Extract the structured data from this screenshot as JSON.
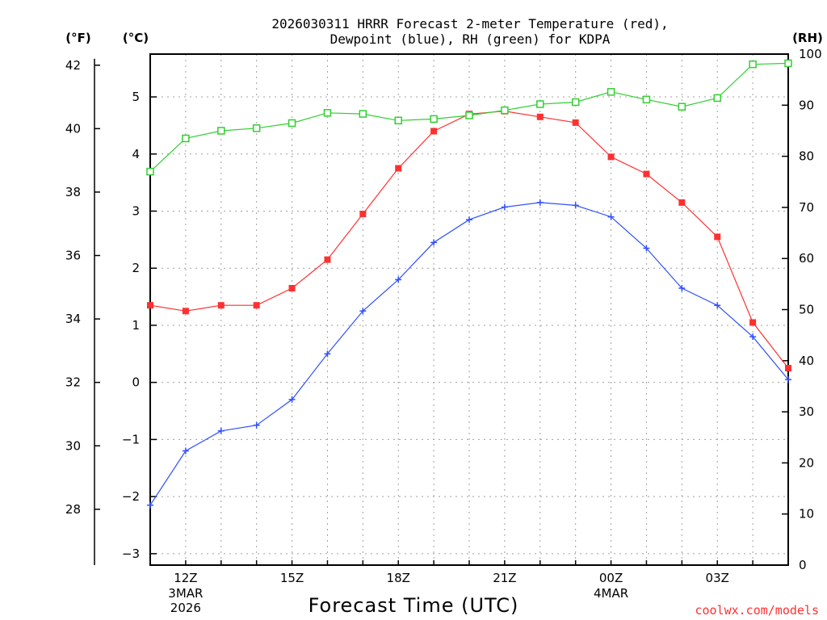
{
  "chart_data": {
    "type": "line",
    "title_line1": "2026030311 HRRR Forecast 2-meter Temperature (red),",
    "title_line2": "Dewpoint (blue), RH (green) for KDPA",
    "xlabel": "Forecast Time (UTC)",
    "credit": "coolwx.com/models",
    "left_outer_axis_label": "(°F)",
    "left_inner_axis_label": "(°C)",
    "right_axis_label": "(RH)",
    "x_hours": [
      11,
      12,
      13,
      14,
      15,
      16,
      17,
      18,
      19,
      20,
      21,
      22,
      23,
      24,
      25,
      26,
      27,
      28,
      29
    ],
    "xlim": [
      11,
      29
    ],
    "celsius_ylim": [
      -3.2,
      5.75
    ],
    "fahrenheit_ticks": [
      28,
      30,
      32,
      34,
      36,
      38,
      40,
      42
    ],
    "celsius_ticks": [
      -3,
      -2,
      -1,
      0,
      1,
      2,
      3,
      4,
      5
    ],
    "rh_ylim": [
      0,
      100
    ],
    "rh_ticks": [
      0,
      10,
      20,
      30,
      40,
      50,
      60,
      70,
      80,
      90,
      100
    ],
    "x_ticks": [
      {
        "hour": 12,
        "label": "12Z",
        "sub1": "3MAR",
        "sub2": "2026"
      },
      {
        "hour": 15,
        "label": "15Z",
        "sub1": "",
        "sub2": ""
      },
      {
        "hour": 18,
        "label": "18Z",
        "sub1": "",
        "sub2": ""
      },
      {
        "hour": 21,
        "label": "21Z",
        "sub1": "",
        "sub2": ""
      },
      {
        "hour": 24,
        "label": "00Z",
        "sub1": "4MAR",
        "sub2": ""
      },
      {
        "hour": 27,
        "label": "03Z",
        "sub1": "",
        "sub2": ""
      }
    ],
    "series": [
      {
        "name": "Temperature",
        "unit": "C",
        "color": "#ff3030",
        "marker": "filled-square",
        "values": [
          1.35,
          1.25,
          1.35,
          1.35,
          1.65,
          2.15,
          2.95,
          3.75,
          4.4,
          4.7,
          4.75,
          4.65,
          4.55,
          3.95,
          3.65,
          3.15,
          2.55,
          1.05,
          0.25
        ]
      },
      {
        "name": "Dewpoint",
        "unit": "C",
        "color": "#3050ff",
        "marker": "plus",
        "values": [
          -2.15,
          -1.2,
          -0.85,
          -0.75,
          -0.3,
          0.5,
          1.25,
          1.8,
          2.45,
          2.85,
          3.07,
          3.15,
          3.1,
          2.9,
          2.35,
          1.65,
          1.35,
          0.8,
          0.05
        ]
      },
      {
        "name": "RH",
        "unit": "%",
        "color": "#30d030",
        "marker": "open-square",
        "values": [
          77,
          83.5,
          85,
          85.5,
          86.5,
          88.5,
          88.3,
          87,
          87.3,
          88,
          89,
          90.2,
          90.6,
          92.6,
          91.1,
          89.7,
          91.4,
          98,
          98.2
        ]
      }
    ]
  }
}
